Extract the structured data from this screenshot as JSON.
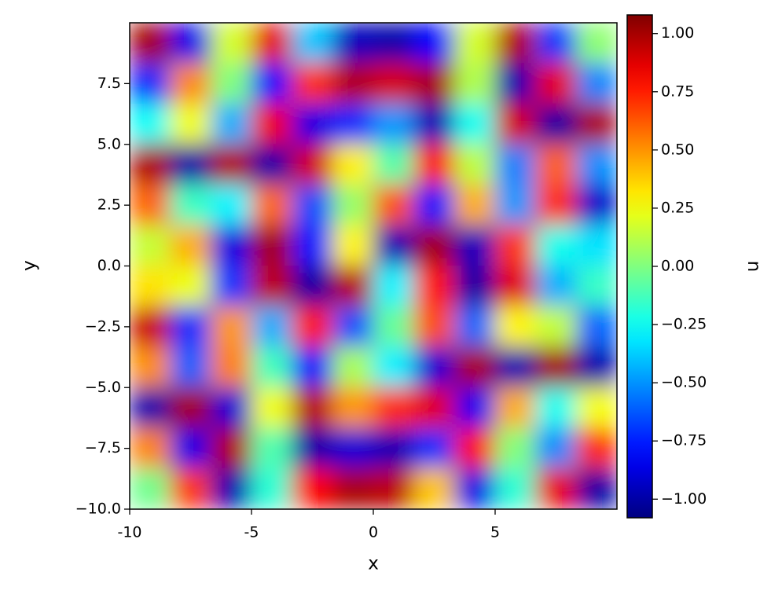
{
  "chart_data": {
    "type": "heatmap",
    "xlabel": "x",
    "ylabel": "y",
    "colorbar_label": "u",
    "colormap": "jet",
    "xlim": [
      -10,
      10
    ],
    "ylim": [
      -10,
      10
    ],
    "xticks": [
      -10,
      -5,
      0,
      5
    ],
    "yticks": [
      {
        "value": -10,
        "label": "−10.0"
      },
      {
        "value": -7.5,
        "label": "−7.5"
      },
      {
        "value": -5,
        "label": "−5.0"
      },
      {
        "value": -2.5,
        "label": "−2.5"
      },
      {
        "value": 0,
        "label": "0.0"
      },
      {
        "value": 2.5,
        "label": "2.5"
      },
      {
        "value": 5,
        "label": "5.0"
      },
      {
        "value": 7.5,
        "label": "7.5"
      }
    ],
    "clim": [
      -1.08,
      1.08
    ],
    "cticks": [
      {
        "value": -1,
        "label": "−1.00"
      },
      {
        "value": -0.75,
        "label": "−0.75"
      },
      {
        "value": -0.5,
        "label": "−0.50"
      },
      {
        "value": -0.25,
        "label": "−0.25"
      },
      {
        "value": 0,
        "label": "0.00"
      },
      {
        "value": 0.25,
        "label": "0.25"
      },
      {
        "value": 0.5,
        "label": "0.50"
      },
      {
        "value": 0.75,
        "label": "0.75"
      },
      {
        "value": 1,
        "label": "1.00"
      }
    ],
    "z": [
      [
        1.0,
        -0.85,
        0.18,
        0.86,
        -0.39,
        -0.95,
        -0.99,
        -0.8,
        0.18,
        0.97,
        -0.69,
        0.03
      ],
      [
        -0.72,
        0.52,
        0.0,
        -0.79,
        0.71,
        0.97,
        0.9,
        0.99,
        0.1,
        -0.97,
        0.86,
        -0.53
      ],
      [
        -0.25,
        0.24,
        -0.44,
        0.84,
        -0.87,
        -0.72,
        -0.49,
        -0.96,
        -0.24,
        0.9,
        -1.0,
        0.98
      ],
      [
        0.98,
        -0.99,
        0.97,
        -0.99,
        0.9,
        0.3,
        -0.09,
        0.81,
        0.13,
        -0.54,
        0.61,
        -0.51
      ],
      [
        0.6,
        -0.14,
        -0.29,
        0.59,
        -0.65,
        0.05,
        0.64,
        -0.76,
        0.44,
        -0.49,
        0.71,
        -0.92
      ],
      [
        0.15,
        0.44,
        -0.87,
        1.0,
        -0.77,
        0.29,
        -0.96,
        1.0,
        -0.95,
        0.7,
        -0.23,
        -0.33
      ],
      [
        0.33,
        0.23,
        -0.7,
        0.95,
        -1.0,
        0.96,
        -0.29,
        0.77,
        -1.0,
        0.87,
        -0.44,
        -0.15
      ],
      [
        0.92,
        -0.71,
        0.49,
        -0.44,
        0.76,
        -0.64,
        -0.05,
        0.65,
        -0.59,
        0.29,
        0.14,
        -0.6
      ],
      [
        0.51,
        -0.61,
        0.54,
        -0.13,
        -0.81,
        0.09,
        -0.3,
        -0.9,
        0.99,
        -0.97,
        1.0,
        -0.98
      ],
      [
        -0.98,
        1.0,
        -0.9,
        0.24,
        0.96,
        0.49,
        0.72,
        0.87,
        -0.84,
        0.44,
        -0.24,
        0.25
      ],
      [
        0.53,
        -0.86,
        0.97,
        -0.1,
        -0.99,
        -0.9,
        -0.97,
        -0.71,
        0.79,
        0.01,
        -0.52,
        0.72
      ],
      [
        -0.03,
        0.69,
        -0.97,
        -0.18,
        0.8,
        0.99,
        0.95,
        0.39,
        -0.86,
        -0.18,
        0.85,
        -1.0
      ]
    ]
  }
}
